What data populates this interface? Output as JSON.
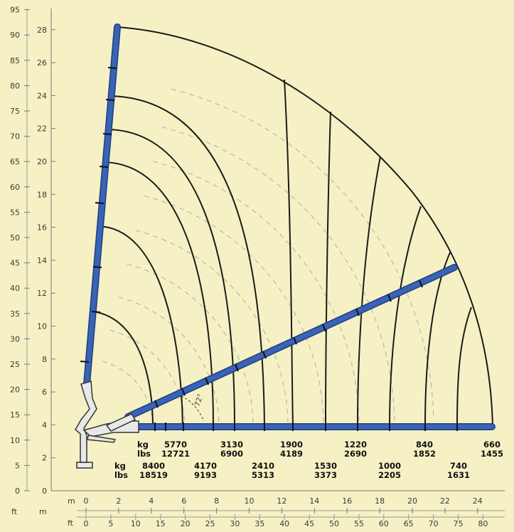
{
  "axes": {
    "ft_label": "ft",
    "m_label": "m",
    "left_ft_ticks": [
      "0",
      "5",
      "10",
      "15",
      "20",
      "25",
      "30",
      "35",
      "40",
      "45",
      "50",
      "55",
      "60",
      "65",
      "70",
      "75",
      "80",
      "85",
      "90",
      "95"
    ],
    "left_m_ticks": [
      "0",
      "2",
      "4",
      "6",
      "8",
      "10",
      "12",
      "14",
      "16",
      "18",
      "20",
      "22",
      "24",
      "26",
      "28"
    ],
    "bottom_m_ticks": [
      "0",
      "2",
      "4",
      "6",
      "8",
      "10",
      "12",
      "14",
      "16",
      "18",
      "20",
      "22",
      "24"
    ],
    "bottom_ft_ticks": [
      "0",
      "5",
      "10",
      "15",
      "20",
      "25",
      "30",
      "35",
      "40",
      "45",
      "50",
      "55",
      "60",
      "65",
      "70",
      "75",
      "80"
    ]
  },
  "angle_label": "72°",
  "capacity": {
    "row1": {
      "kg_label": "kg",
      "lbs_label": "lbs",
      "items": [
        {
          "kg": "5770",
          "lbs": "12721"
        },
        {
          "kg": "3130",
          "lbs": "6900"
        },
        {
          "kg": "1900",
          "lbs": "4189"
        },
        {
          "kg": "1220",
          "lbs": "2690"
        },
        {
          "kg": "840",
          "lbs": "1852"
        },
        {
          "kg": "660",
          "lbs": "1455"
        }
      ]
    },
    "row2": {
      "kg_label": "kg",
      "lbs_label": "lbs",
      "items": [
        {
          "kg": "8400",
          "lbs": "18519"
        },
        {
          "kg": "4170",
          "lbs": "9193"
        },
        {
          "kg": "2410",
          "lbs": "5313"
        },
        {
          "kg": "1530",
          "lbs": "3373"
        },
        {
          "kg": "1000",
          "lbs": "2205"
        },
        {
          "kg": "740",
          "lbs": "1631"
        }
      ]
    }
  },
  "colors": {
    "background": "#f6f1c4",
    "boom": "#3a63b5",
    "curve": "#1b1b1b",
    "dashed": "#b9b7a8",
    "axis": "#555555"
  }
}
